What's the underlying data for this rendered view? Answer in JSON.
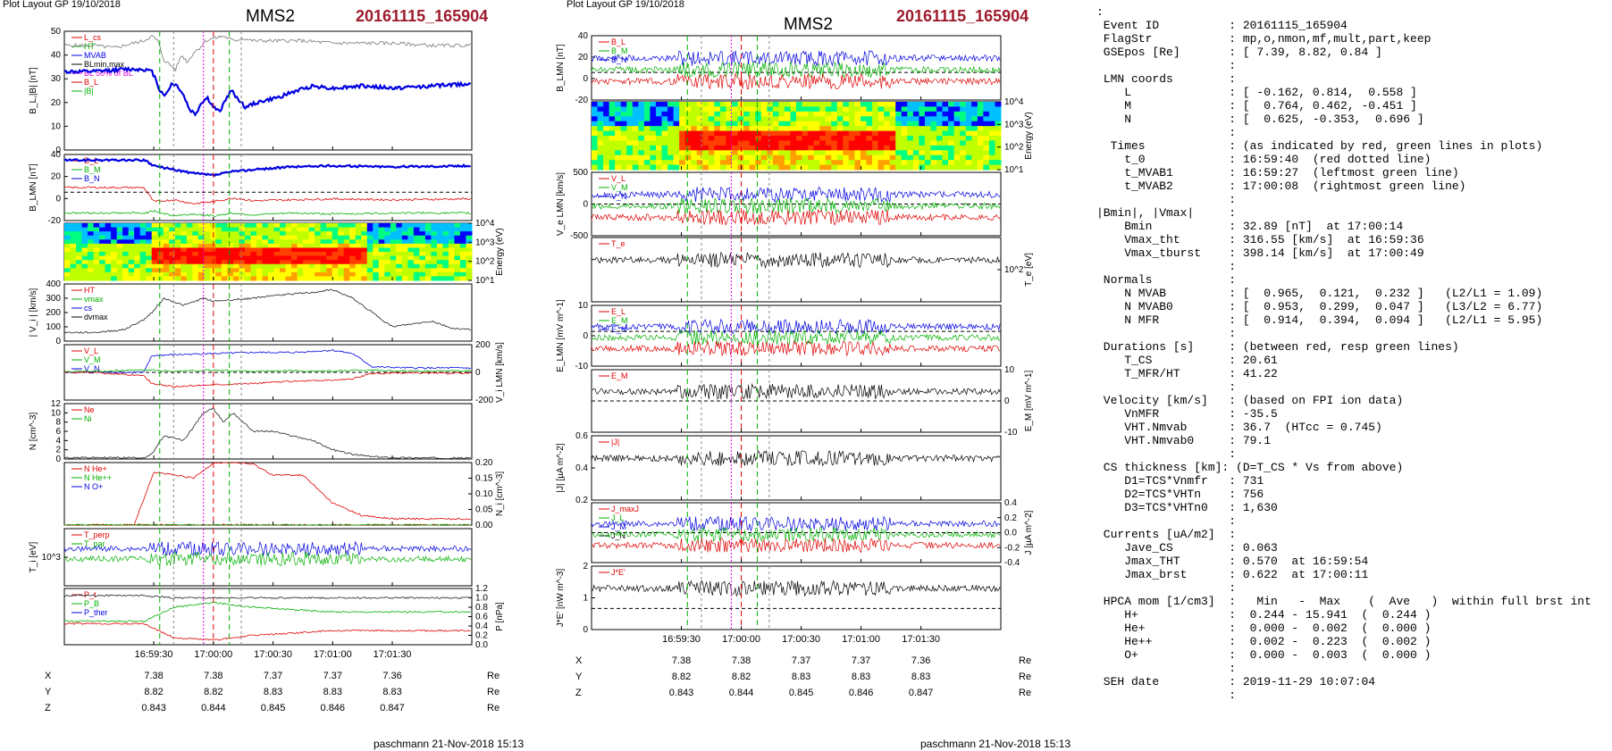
{
  "left_figure": {
    "header": "Plot Layout GP 19/10/2018",
    "spacecraft": "MMS2",
    "event": "20161115_165904",
    "footer": "paschmann 21-Nov-2018 15:13",
    "time_ticks": [
      "16:59:30",
      "17:00:00",
      "17:00:30",
      "17:01:00",
      "17:01:30"
    ],
    "coords": [
      {
        "label": "X",
        "values": [
          "7.38",
          "7.38",
          "7.37",
          "7.37",
          "7.36"
        ],
        "unit": "Re"
      },
      {
        "label": "Y",
        "values": [
          "8.82",
          "8.82",
          "8.83",
          "8.83",
          "8.83"
        ],
        "unit": "Re"
      },
      {
        "label": "Z",
        "values": [
          "0.843",
          "0.844",
          "0.845",
          "0.846",
          "0.847"
        ],
        "unit": "Re"
      }
    ]
  },
  "right_figure": {
    "header": "Plot Layout GP 19/10/2018",
    "spacecraft": "MMS2",
    "event": "20161115_165904",
    "footer": "paschmann 21-Nov-2018 15:13",
    "time_ticks": [
      "16:59:30",
      "17:00:00",
      "17:00:30",
      "17:01:00",
      "17:01:30"
    ],
    "coords": [
      {
        "label": "X",
        "values": [
          "7.38",
          "7.38",
          "7.37",
          "7.37",
          "7.36"
        ],
        "unit": "Re"
      },
      {
        "label": "Y",
        "values": [
          "8.82",
          "8.82",
          "8.83",
          "8.83",
          "8.83"
        ],
        "unit": "Re"
      },
      {
        "label": "Z",
        "values": [
          "0.843",
          "0.844",
          "0.845",
          "0.846",
          "0.847"
        ],
        "unit": "Re"
      }
    ]
  },
  "summary_lines": [
    ":",
    " Event ID          : 20161115_165904",
    " FlagStr           : mp,o,nmon,mf,mult,part,keep",
    " GSEpos [Re]       : [ 7.39, 8.82, 0.84 ]",
    "                   :",
    " LMN coords        :",
    "    L              : [ -0.162, 0.814,  0.558 ]",
    "    M              : [  0.764, 0.462, -0.451 ]",
    "    N              : [  0.625, -0.353,  0.696 ]",
    "                   :",
    "  Times            : (as indicated by red, green lines in plots)",
    "    t_0            : 16:59:40  (red dotted line)",
    "    t_MVAB1        : 16:59:27  (leftmost green line)",
    "    t_MVAB2        : 17:00:08  (rightmost green line)",
    "                   :",
    "|Bmin|, |Vmax|     :",
    "    Bmin           : 32.89 [nT]  at 17:00:14",
    "    Vmax_tht       : 316.55 [km/s]  at 16:59:36",
    "    Vmax_tburst    : 398.14 [km/s]  at 17:00:49",
    "                   :",
    " Normals           :",
    "    N MVAB         : [  0.965,  0.121,  0.232 ]   (L2/L1 = 1.09)",
    "    N MVAB0        : [  0.953,  0.299,  0.047 ]   (L3/L2 = 6.77)",
    "    N MFR          : [  0.914,  0.394,  0.094 ]   (L2/L1 = 5.95)",
    "                   :",
    " Durations [s]     : (between red, resp green lines)",
    "    T_CS           : 20.61",
    "    T_MFR/HT       : 41.22",
    "                   :",
    " Velocity [km/s]   : (based on FPI ion data)",
    "    VnMFR          : -35.5",
    "    VHT.Nmvab      : 36.7  (HTcc = 0.745)",
    "    VHT.Nmvab0     : 79.1",
    "                   :",
    " CS thickness [km]: (D=T_CS * Vs from above)",
    "    D1=TCS*Vnmfr   : 731",
    "    D2=TCS*VHTn    : 756",
    "    D3=TCS*VHTn0   : 1,630",
    "                   :",
    " Currents [uA/m2]  :",
    "    Jave_CS        : 0.063",
    "    Jmax_THT       : 0.570  at 16:59:54",
    "    Jmax_brst      : 0.622  at 17:00:11",
    "                   :",
    " HPCA mom [1/cm3]  :   Min   -  Max    (  Ave   )  within full brst int",
    "    H+             :  0.244 - 15.941  (  0.244 )",
    "    He+            :  0.000 -  0.002  (  0.000 )",
    "    He++           :  0.002 -  0.223  (  0.002 )",
    "    O+             :  0.000 -  0.003  (  0.000 )",
    "                   :",
    " SEH date          : 2019-11-29 10:07:04",
    "                   :"
  ],
  "colors": {
    "event_title": "#9e1b2c",
    "red": "#e00000",
    "green": "#00b000",
    "blue": "#0000e0",
    "magenta": "#e000e0",
    "black": "#000000"
  },
  "chart_data": [
    {
      "type": "line",
      "panel": "left-1",
      "ylabel": "B_L,|B| [nT]",
      "ylim": [
        0,
        50
      ],
      "yticks": [
        "0",
        "10",
        "20",
        "30",
        "40",
        "50"
      ],
      "legend": [
        "L_cs",
        "HT",
        "MVAB",
        "BLmin,max",
        "BL 50% of BL",
        "B_L",
        "|B|"
      ],
      "series": [
        {
          "name": "|B|",
          "x": [
            -60,
            -50,
            -40,
            -35,
            -31,
            -28,
            -25,
            -22,
            -19,
            -16,
            -13,
            -10,
            -7,
            -4,
            0,
            5,
            10,
            15,
            20,
            30,
            45,
            60,
            75,
            90,
            110,
            130
          ],
          "values": [
            44,
            43,
            45,
            46,
            48,
            46,
            38,
            36,
            34,
            40,
            37,
            41,
            43,
            46,
            47,
            48,
            46,
            47,
            46,
            46,
            46,
            45,
            45,
            45,
            44,
            44
          ]
        },
        {
          "name": "B_L",
          "x": [
            -60,
            -45,
            -35,
            -31,
            -29,
            -27,
            -24,
            -21,
            -18,
            -15,
            -12,
            -9,
            -6,
            -3,
            0,
            3,
            6,
            9,
            12,
            16,
            22,
            32,
            42,
            50,
            60,
            75,
            90,
            110,
            130
          ],
          "values": [
            33,
            34,
            34,
            33,
            30,
            25,
            23,
            28,
            27,
            23,
            17,
            15,
            20,
            22,
            18,
            16,
            21,
            25,
            22,
            18,
            20,
            22,
            25,
            27,
            26,
            27,
            26,
            27,
            28
          ]
        }
      ]
    },
    {
      "type": "line",
      "panel": "left-2",
      "ylabel": "B_LMN [nT]",
      "ylim": [
        -30,
        40
      ],
      "yticks": [
        "-20",
        "0",
        "20",
        "40"
      ],
      "legend": [
        "B_L",
        "B_M",
        "B_N"
      ],
      "series": [
        {
          "name": "B_L",
          "x": [
            -60,
            -35,
            -30,
            -20,
            -10,
            0,
            10,
            20,
            40,
            60,
            90,
            130
          ],
          "values": [
            34,
            34,
            28,
            24,
            20,
            18,
            22,
            24,
            27,
            28,
            27,
            28
          ]
        },
        {
          "name": "B_M",
          "x": [
            -60,
            -35,
            -30,
            -20,
            -10,
            0,
            10,
            20,
            40,
            60,
            90,
            130
          ],
          "values": [
            5,
            5,
            -10,
            -8,
            -12,
            -10,
            -6,
            -9,
            -8,
            -7,
            -8,
            -7
          ]
        },
        {
          "name": "B_N",
          "x": [
            -60,
            -35,
            -30,
            -20,
            -10,
            0,
            10,
            20,
            40,
            60,
            90,
            130
          ],
          "values": [
            -22,
            -22,
            -20,
            -25,
            -23,
            -25,
            -22,
            -24,
            -22,
            -23,
            -22,
            -22
          ]
        }
      ]
    },
    {
      "type": "heatmap",
      "panel": "left-3",
      "ylabel": "Energy (eV)",
      "yticks": [
        "10^1",
        "10^2",
        "10^3",
        "10^4"
      ]
    },
    {
      "type": "line",
      "panel": "left-4",
      "ylabel": "| V_i | [km/s]",
      "ylim": [
        0,
        400
      ],
      "yticks": [
        "0",
        "100",
        "200",
        "300",
        "400"
      ],
      "legend": [
        "HT",
        "vmax",
        "cs",
        "dvmax"
      ],
      "series": [
        {
          "name": "|V_i|",
          "x": [
            -60,
            -45,
            -35,
            -31,
            -25,
            -15,
            -5,
            0,
            10,
            20,
            30,
            40,
            50,
            60,
            70,
            80,
            90,
            100,
            110,
            120,
            130
          ],
          "values": [
            60,
            80,
            150,
            200,
            300,
            250,
            300,
            280,
            290,
            300,
            320,
            330,
            340,
            360,
            300,
            200,
            100,
            120,
            140,
            90,
            80
          ]
        }
      ]
    },
    {
      "type": "line",
      "panel": "left-5",
      "ylabel": "V_i LMN [km/s]",
      "ylim": [
        -250,
        250
      ],
      "yticks": [
        "-200",
        "0",
        "200"
      ],
      "legend": [
        "V_L",
        "V_M",
        "V_N"
      ],
      "series": [
        {
          "name": "V_L",
          "x": [
            -60,
            -35,
            -31,
            -20,
            0,
            20,
            40,
            60,
            70,
            80,
            100,
            130
          ],
          "values": [
            0,
            0,
            150,
            160,
            170,
            180,
            180,
            200,
            170,
            50,
            40,
            40
          ]
        },
        {
          "name": "V_M",
          "x": [
            -60,
            -35,
            -31,
            -20,
            0,
            20,
            40,
            60,
            70,
            80,
            100,
            130
          ],
          "values": [
            0,
            -30,
            -100,
            -130,
            -110,
            -100,
            -80,
            -70,
            -60,
            -10,
            -5,
            -10
          ]
        },
        {
          "name": "V_N",
          "x": [
            -60,
            -35,
            -31,
            -20,
            0,
            20,
            40,
            60,
            70,
            80,
            100,
            130
          ],
          "values": [
            10,
            20,
            20,
            10,
            20,
            10,
            15,
            10,
            20,
            20,
            10,
            15
          ]
        }
      ]
    },
    {
      "type": "line",
      "panel": "left-6",
      "ylabel": "N [cm^-3]",
      "ylim": [
        0,
        12
      ],
      "yticks": [
        "0",
        "2",
        "4",
        "6",
        "8",
        "10",
        "12"
      ],
      "legend": [
        "Ne",
        "Ni"
      ],
      "series": [
        {
          "name": "Ni",
          "x": [
            -60,
            -35,
            -31,
            -25,
            -15,
            -5,
            0,
            5,
            10,
            15,
            20,
            30,
            40,
            50,
            60,
            70,
            80,
            90,
            130
          ],
          "values": [
            0.3,
            0.3,
            1,
            5,
            4,
            10,
            11,
            8,
            10,
            8,
            6,
            6,
            5,
            4,
            2,
            1,
            0.5,
            0.3,
            0.2
          ]
        }
      ]
    },
    {
      "type": "line",
      "panel": "left-7",
      "ylabel": "N_i [cm^-3]",
      "ylim": [
        0,
        0.2
      ],
      "yticks": [
        "0.00",
        "0.05",
        "0.10",
        "0.15",
        "0.20"
      ],
      "legend": [
        "N He+",
        "N He++",
        "N O+"
      ],
      "series": [
        {
          "name": "N He++",
          "x": [
            -40,
            -30,
            -10,
            0,
            10,
            20,
            30,
            45,
            60,
            75,
            90
          ],
          "values": [
            0.0,
            0.17,
            0.15,
            0.2,
            0.2,
            0.195,
            0.16,
            0.16,
            0.07,
            0.03,
            0.02
          ]
        },
        {
          "name": "N He+",
          "x": [
            -40,
            -30,
            -10,
            0,
            10,
            20,
            30,
            45,
            60,
            75,
            90
          ],
          "values": [
            0,
            0,
            0,
            0,
            0,
            0.002,
            0,
            0,
            0,
            0,
            0
          ]
        },
        {
          "name": "N O+",
          "x": [
            -40,
            -30,
            -10,
            0,
            10,
            20,
            30,
            45,
            60,
            75,
            90
          ],
          "values": [
            0,
            0,
            0,
            0,
            0,
            0,
            0,
            0,
            0,
            0,
            0
          ]
        }
      ]
    },
    {
      "type": "line",
      "panel": "left-8",
      "ylabel": "T_i [eV]",
      "yticks": [
        "10^3"
      ],
      "legend": [
        "T_perp",
        "T_par"
      ],
      "series": [
        {
          "name": "T_i",
          "x": [
            -60,
            -35,
            -31,
            -25,
            -15,
            0,
            15,
            30,
            45,
            60,
            70,
            80,
            100,
            130
          ],
          "values": [
            5000,
            5000,
            4800,
            1500,
            1200,
            1100,
            1200,
            1200,
            1100,
            1300,
            2500,
            4000,
            5000,
            5000
          ]
        }
      ]
    },
    {
      "type": "line",
      "panel": "left-9",
      "ylabel": "P [nPa]",
      "ylim": [
        0,
        1.2
      ],
      "yticks": [
        "0.0",
        "0.2",
        "0.4",
        "0.6",
        "0.8",
        "1.0",
        "1.2"
      ],
      "legend": [
        "P_t",
        "P_B",
        "P_ther"
      ],
      "series": [
        {
          "name": "P_t",
          "x": [
            -60,
            -35,
            -20,
            0,
            20,
            60,
            130
          ],
          "values": [
            1.05,
            1.05,
            1.0,
            1.0,
            1.0,
            1.0,
            1.0
          ]
        },
        {
          "name": "P_B",
          "x": [
            -60,
            -35,
            -20,
            0,
            20,
            60,
            130
          ],
          "values": [
            0.45,
            0.45,
            0.15,
            0.1,
            0.2,
            0.3,
            0.3
          ]
        },
        {
          "name": "P_ther",
          "x": [
            -60,
            -35,
            -20,
            0,
            20,
            60,
            130
          ],
          "values": [
            0.5,
            0.5,
            0.8,
            0.9,
            0.8,
            0.7,
            0.7
          ]
        }
      ]
    },
    {
      "type": "line",
      "panel": "right-1",
      "ylabel": "B_LMN [nT]",
      "ylim": [
        -30,
        40
      ],
      "yticks": [
        "-20",
        "0",
        "20",
        "40"
      ],
      "legend": [
        "B_L",
        "B_M",
        "B_N"
      ]
    },
    {
      "type": "heatmap",
      "panel": "right-2",
      "ylabel": "Energy (eV)",
      "yticks": [
        "10^1",
        "10^2",
        "10^3",
        "10^4"
      ]
    },
    {
      "type": "line",
      "panel": "right-3",
      "ylabel": "V_e LMN [km/s]",
      "ylim": [
        -700,
        700
      ],
      "yticks": [
        "-500",
        "0",
        "500"
      ],
      "legend": [
        "V_L",
        "V_M",
        "V_N"
      ]
    },
    {
      "type": "line",
      "panel": "right-4",
      "ylabel": "T_e [eV]",
      "yticks": [
        "10^2"
      ],
      "legend": [
        "T_e"
      ]
    },
    {
      "type": "line",
      "panel": "right-5",
      "ylabel": "E_LMN [mV m^-1]",
      "ylim": [
        -20,
        15
      ],
      "yticks": [
        "-10",
        "0",
        "10"
      ],
      "legend": [
        "E_L",
        "E_M",
        "E_N"
      ]
    },
    {
      "type": "line",
      "panel": "right-6",
      "ylabel": "E_M [mV m^-1]",
      "ylim": [
        -15,
        15
      ],
      "yticks": [
        "-10",
        "0",
        "10"
      ],
      "legend": [
        "E_M"
      ]
    },
    {
      "type": "line",
      "panel": "right-7",
      "ylabel": "|J| [µA m^-2]",
      "ylim": [
        0,
        0.6
      ],
      "yticks": [
        "0.2",
        "0.4",
        "0.6"
      ],
      "legend": [
        "|J|"
      ]
    },
    {
      "type": "line",
      "panel": "right-8",
      "ylabel": "J [µA m^-2]",
      "ylim": [
        -0.5,
        0.5
      ],
      "yticks": [
        "-0.4",
        "-0.2",
        "0.0",
        "0.2",
        "0.4"
      ],
      "legend": [
        "J_maxJ",
        "J_L",
        "J_M",
        "J_N"
      ]
    },
    {
      "type": "line",
      "panel": "right-9",
      "ylabel": "J*E' [nW m^-3]",
      "ylim": [
        -1,
        2
      ],
      "yticks": [
        "0",
        "1",
        "2"
      ],
      "legend": [
        "J*E'"
      ]
    }
  ]
}
